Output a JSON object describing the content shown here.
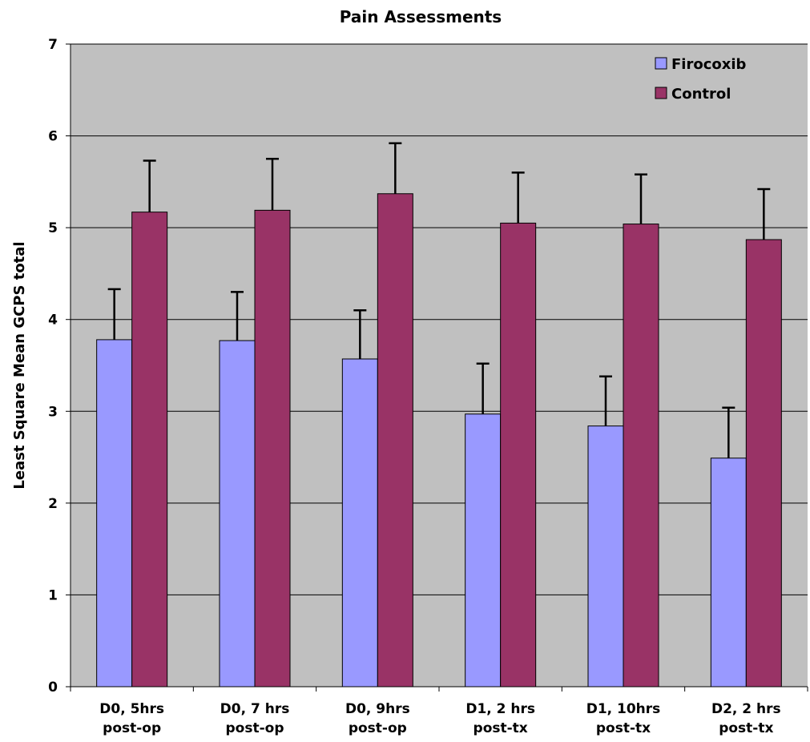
{
  "chart_data": {
    "type": "bar",
    "title": "Pain Assessments",
    "xlabel": "",
    "ylabel": "Least Square Mean GCPS total",
    "ylim": [
      0,
      7
    ],
    "yticks": [
      "0",
      "1",
      "2",
      "3",
      "4",
      "5",
      "6",
      "7"
    ],
    "categories": [
      [
        "D0, 5hrs",
        "post-op"
      ],
      [
        "D0, 7 hrs",
        "post-op"
      ],
      [
        "D0, 9hrs",
        "post-op"
      ],
      [
        "D1, 2 hrs",
        "post-tx"
      ],
      [
        "D1, 10hrs",
        "post-tx"
      ],
      [
        "D2, 2 hrs",
        "post-tx"
      ]
    ],
    "series": [
      {
        "name": "Firocoxib",
        "color": "#9999ff",
        "values": [
          3.78,
          3.77,
          3.57,
          2.97,
          2.84,
          2.49
        ],
        "error_upper": [
          4.33,
          4.3,
          4.1,
          3.52,
          3.38,
          3.04
        ]
      },
      {
        "name": "Control",
        "color": "#993366",
        "values": [
          5.17,
          5.19,
          5.37,
          5.05,
          5.04,
          4.87
        ],
        "error_upper": [
          5.73,
          5.75,
          5.92,
          5.6,
          5.58,
          5.42
        ]
      }
    ],
    "grid": true,
    "plot_background": "#c0c0c0",
    "legend_position": "top-right"
  }
}
